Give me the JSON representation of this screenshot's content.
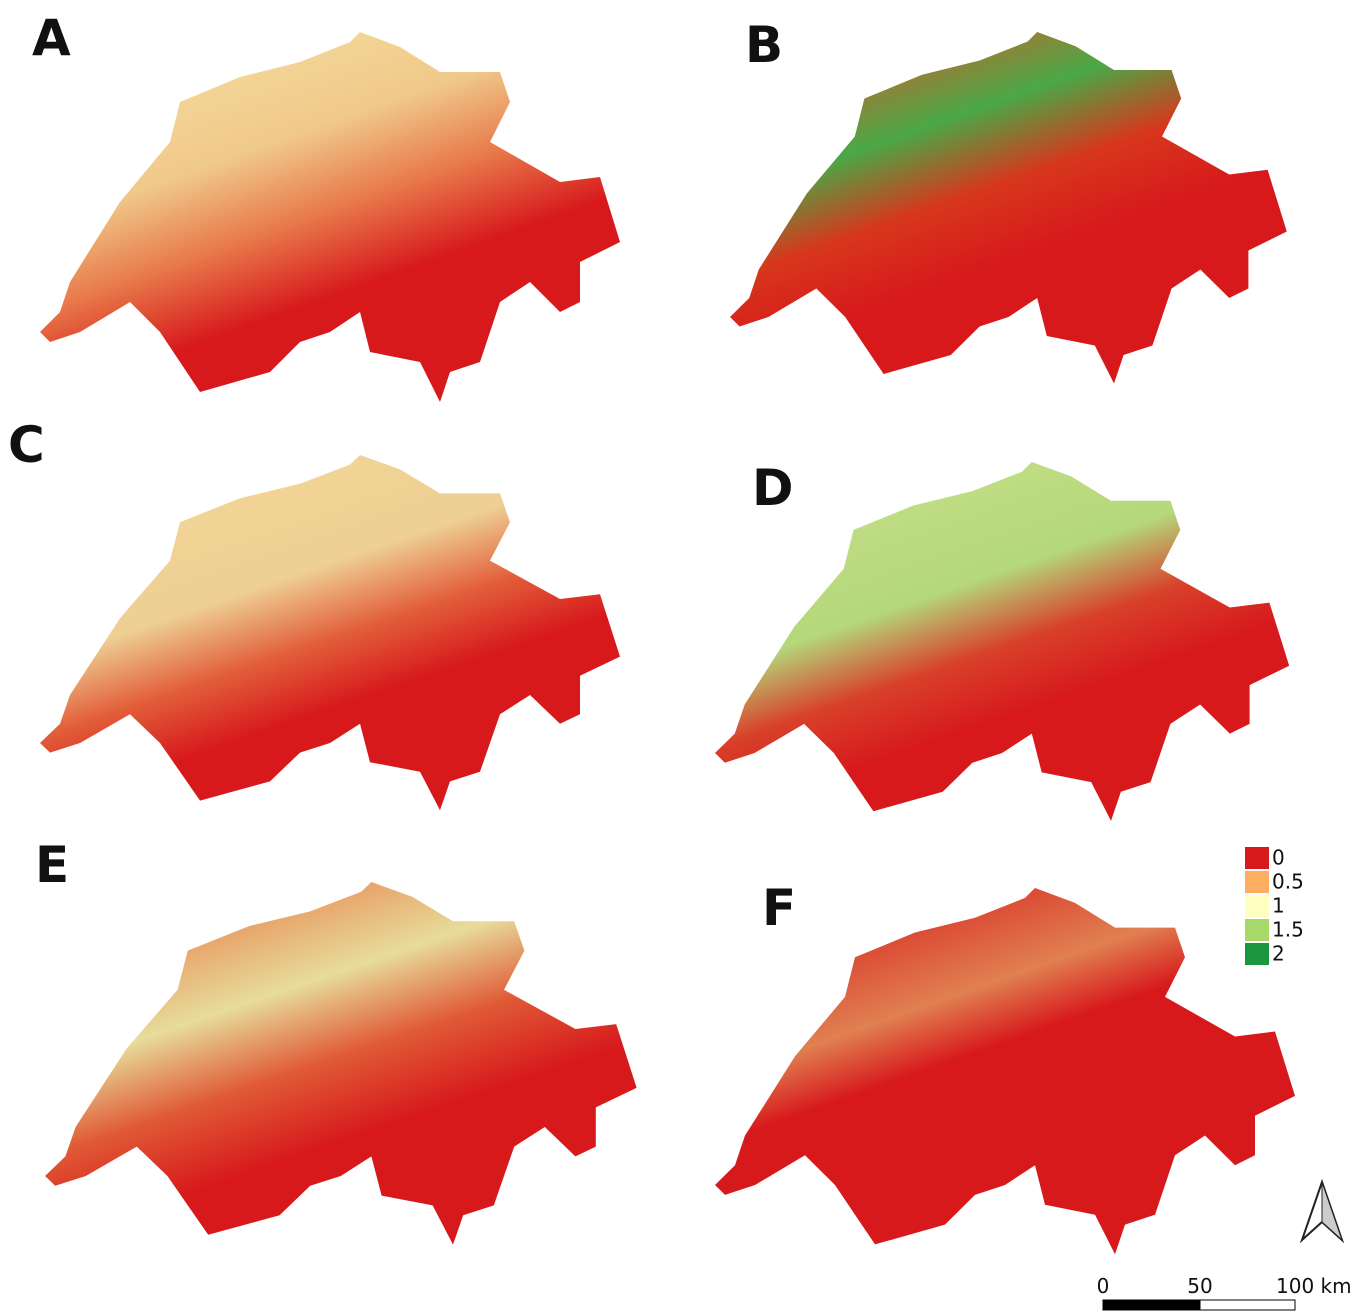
{
  "panels": [
    {
      "label": "A"
    },
    {
      "label": "B"
    },
    {
      "label": "C"
    },
    {
      "label": "D"
    },
    {
      "label": "E"
    },
    {
      "label": "F"
    }
  ],
  "legend": [
    {
      "label": "0",
      "color": "#d7191c"
    },
    {
      "label": "0.5",
      "color": "#fdae61"
    },
    {
      "label": "1",
      "color": "#ffffc0"
    },
    {
      "label": "1.5",
      "color": "#a6d96a"
    },
    {
      "label": "2",
      "color": "#1a9641"
    }
  ],
  "scale_bar": {
    "labels": [
      "0",
      "50",
      "100 km"
    ]
  }
}
